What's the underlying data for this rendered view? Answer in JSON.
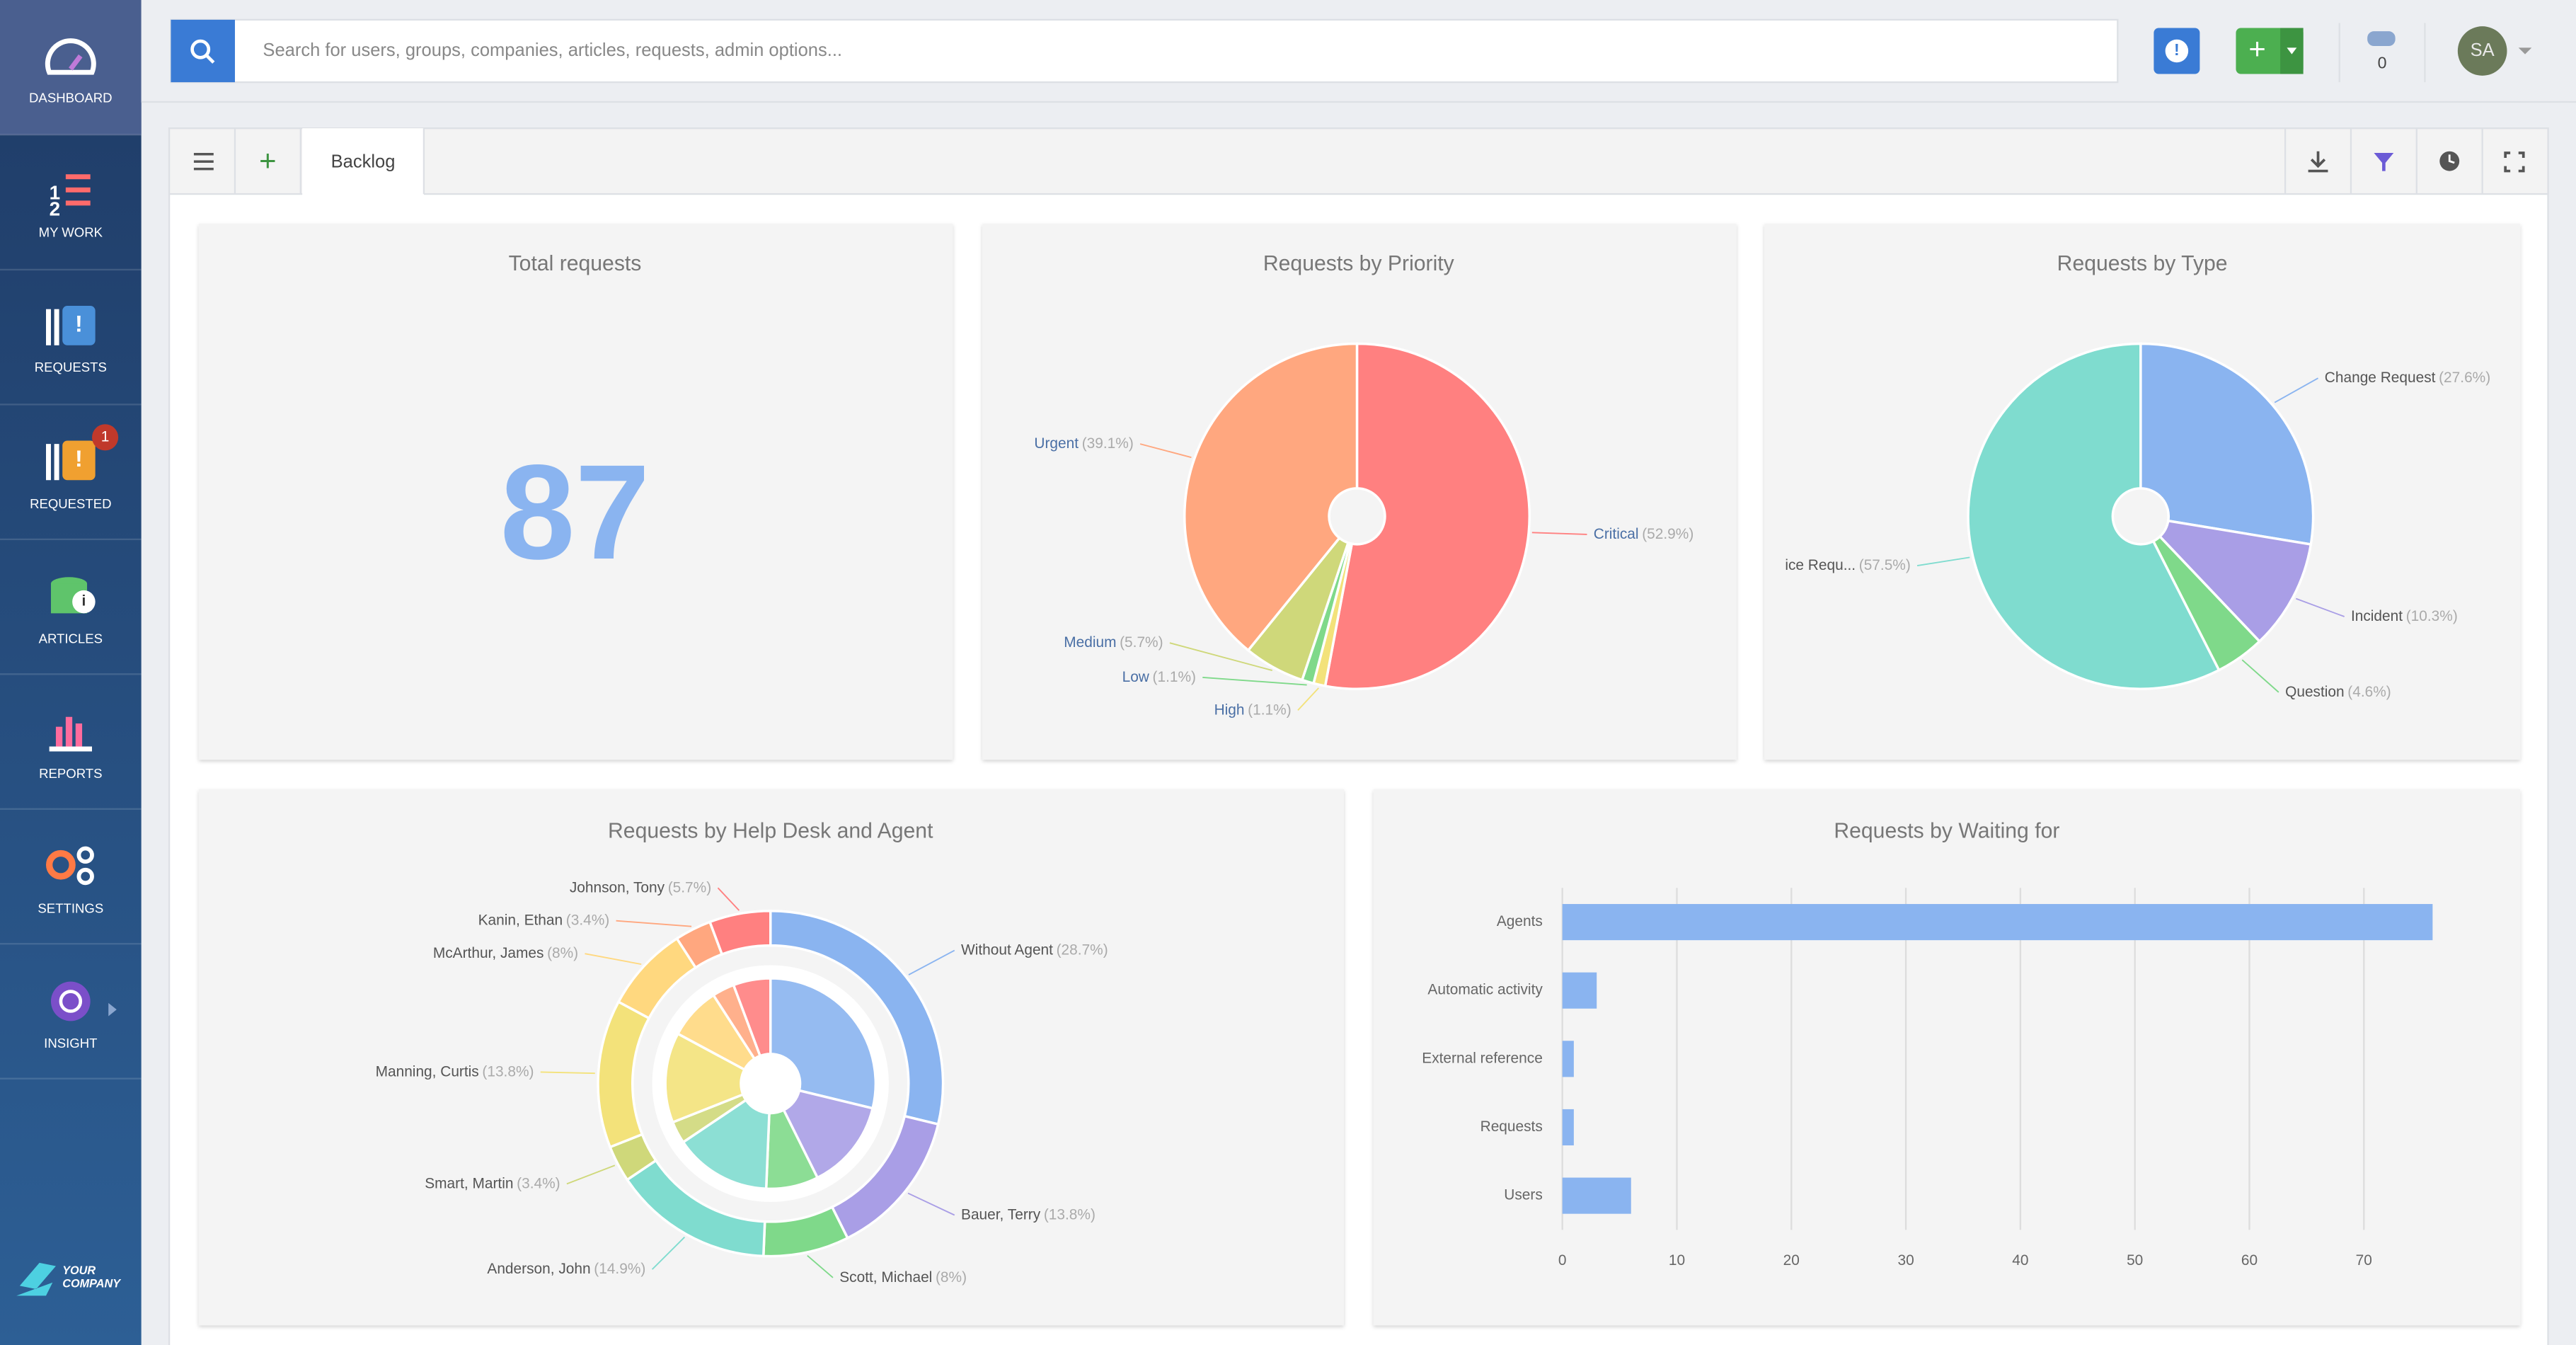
{
  "sidebar": {
    "items": [
      "DASHBOARD",
      "MY WORK",
      "REQUESTS",
      "REQUESTED",
      "ARTICLES",
      "REPORTS",
      "SETTINGS",
      "INSIGHT"
    ],
    "requested_badge": 1,
    "logo": [
      "YOUR",
      "COMPANY"
    ]
  },
  "topbar": {
    "search_placeholder": "Search for users, groups, companies, articles, requests, admin options...",
    "counter": 0,
    "avatar": "SA"
  },
  "tab": "Backlog",
  "chart_data": [
    {
      "type": "kpi",
      "title": "Total requests",
      "value": 87,
      "color": "#8ab4f0"
    },
    {
      "type": "pie",
      "title": "Requests by Priority",
      "categories": [
        "Critical",
        "High",
        "Low",
        "Medium",
        "Urgent"
      ],
      "values": [
        52.9,
        1.1,
        1.1,
        5.7,
        39.1
      ],
      "value_labels": [
        "(52.9%)",
        "(1.1%)",
        "(1.1%)",
        "(5.7%)",
        "(39.1%)"
      ],
      "colors": [
        "#ff8080",
        "#f3e27a",
        "#7fd98a",
        "#cfd87a",
        "#ffa77f"
      ]
    },
    {
      "type": "pie",
      "title": "Requests by Type",
      "categories": [
        "Change Request",
        "Incident",
        "Question",
        "ice Requ..."
      ],
      "values": [
        27.6,
        10.3,
        4.6,
        57.5
      ],
      "value_labels": [
        "(27.6%)",
        "(10.3%)",
        "(4.6%)",
        "(57.5%)"
      ],
      "colors": [
        "#8ab4f0",
        "#a99ee6",
        "#7fd98a",
        "#7fdccf"
      ]
    },
    {
      "type": "sunburst",
      "title": "Requests by Help Desk and Agent",
      "categories": [
        "Without Agent",
        "Bauer, Terry",
        "Scott, Michael",
        "Anderson, John",
        "Smart, Martin",
        "Manning, Curtis",
        "McArthur, James",
        "Kanin, Ethan",
        "Johnson, Tony"
      ],
      "values": [
        28.7,
        13.8,
        8,
        14.9,
        3.4,
        13.8,
        8,
        3.4,
        5.7
      ],
      "value_labels": [
        "(28.7%)",
        "(13.8%)",
        "(8%)",
        "(14.9%)",
        "(3.4%)",
        "(13.8%)",
        "(8%)",
        "(3.4%)",
        "(5.7%)"
      ],
      "colors": [
        "#8ab4f0",
        "#a99ee6",
        "#7fd98a",
        "#7fdccf",
        "#cfd87a",
        "#f3e27a",
        "#ffd87f",
        "#ffa77f",
        "#ff8080"
      ]
    },
    {
      "type": "hbar",
      "title": "Requests by Waiting for",
      "categories": [
        "Agents",
        "Automatic activity",
        "External reference",
        "Requests",
        "Users"
      ],
      "values": [
        76,
        3,
        1,
        1,
        6
      ],
      "color": "#8ab4f0",
      "xlim": [
        0,
        80
      ],
      "xticks": [
        0,
        10,
        20,
        30,
        40,
        50,
        60,
        70
      ],
      "grid": true
    }
  ]
}
